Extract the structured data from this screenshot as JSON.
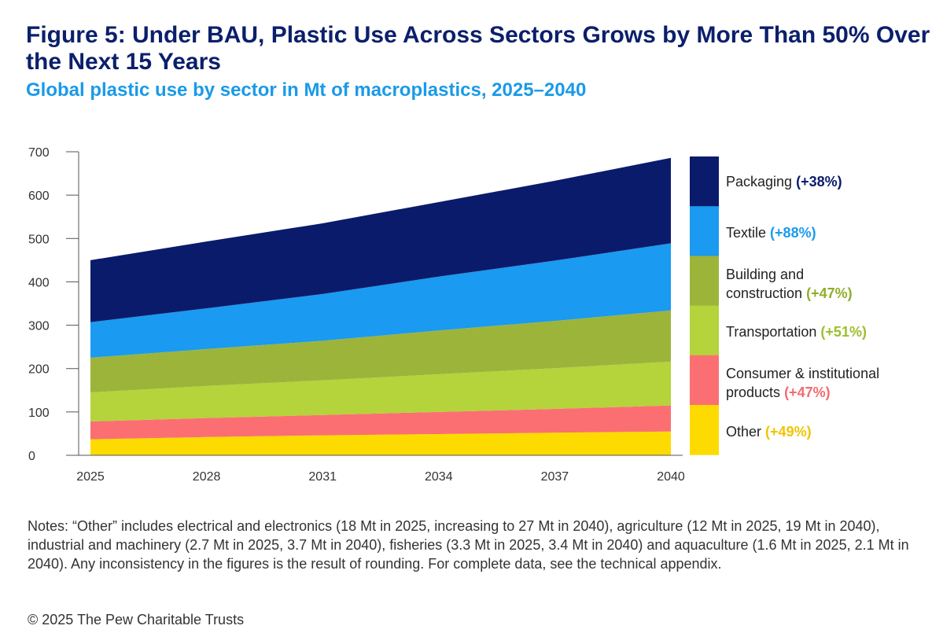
{
  "title": "Figure 5: Under BAU, Plastic Use Across Sectors Grows by More Than 50% Over the Next 15 Years",
  "subtitle": "Global plastic use by sector in Mt of macroplastics, 2025–2040",
  "notes": "Notes: “Other” includes electrical and electronics (18 Mt in 2025, increasing to 27 Mt in 2040), agriculture (12 Mt in 2025, 19 Mt in 2040), industrial and machinery (2.7 Mt in 2025, 3.7 Mt in 2040), fisheries (3.3 Mt in 2025, 3.4 Mt in 2040) and aquaculture (1.6 Mt in 2025, 2.1 Mt in 2040). Any inconsistency in the figures is the result of rounding. For complete data, see the technical appendix.",
  "copyright": "© 2025 The Pew Charitable Trusts",
  "legend": [
    {
      "label": "Packaging",
      "pct": "(+38%)",
      "color": "#0b1b6b",
      "pct_color": "#0b1b6b"
    },
    {
      "label": "Textile",
      "pct": "(+88%)",
      "color": "#1a9af0",
      "pct_color": "#1a9af0"
    },
    {
      "label": "Building and construction",
      "label_line1": "Building and",
      "label_line2": "construction",
      "pct": "(+47%)",
      "color": "#9db43a",
      "pct_color": "#8fae2b"
    },
    {
      "label": "Transportation",
      "pct": "(+51%)",
      "color": "#b5d33b",
      "pct_color": "#9cbf2c"
    },
    {
      "label": "Consumer & institutional products",
      "label_line1": "Consumer & institutional",
      "label_line2": "products",
      "pct": "(+47%)",
      "color": "#fb6f72",
      "pct_color": "#f26c6f"
    },
    {
      "label": "Other",
      "pct": "(+49%)",
      "color": "#fddb00",
      "pct_color": "#f0c400"
    }
  ],
  "chart_data": {
    "type": "area",
    "stacked": true,
    "x": [
      2025,
      2028,
      2031,
      2034,
      2037,
      2040
    ],
    "xticks": [
      "2025",
      "2028",
      "2031",
      "2034",
      "2037",
      "2040"
    ],
    "yticks": [
      "0",
      "100",
      "200",
      "300",
      "400",
      "500",
      "600",
      "700"
    ],
    "ylim": [
      0,
      700
    ],
    "series": [
      {
        "name": "Other",
        "values": [
          37,
          42,
          46,
          49,
          52,
          55
        ],
        "color": "#fddb00"
      },
      {
        "name": "Consumer & institutional products",
        "values": [
          41,
          44,
          47,
          51,
          55,
          60
        ],
        "color": "#fb6f72"
      },
      {
        "name": "Transportation",
        "values": [
          67,
          74,
          80,
          87,
          94,
          101
        ],
        "color": "#b5d33b"
      },
      {
        "name": "Building and construction",
        "values": [
          80,
          85,
          91,
          101,
          109,
          118
        ],
        "color": "#9db43a"
      },
      {
        "name": "Textile",
        "values": [
          82,
          94,
          108,
          124,
          139,
          155
        ],
        "color": "#1a9af0"
      },
      {
        "name": "Packaging",
        "values": [
          143,
          154,
          163,
          172,
          184,
          197
        ],
        "color": "#0b1b6b"
      }
    ]
  }
}
